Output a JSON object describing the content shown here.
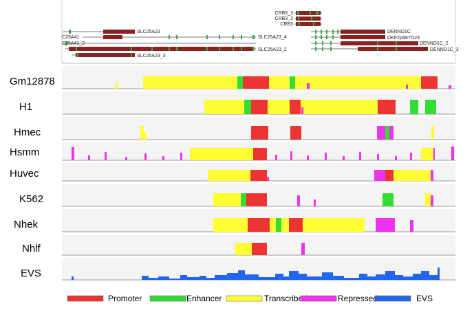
{
  "colors": {
    "promoter": "#ee3333",
    "enhancer": "#33dd33",
    "transcribed": "#ffff33",
    "repressed": "#ee33ee",
    "evs": "#2266ee",
    "gene_body": "#8b2222",
    "gene_exon": "#33aa44",
    "baseline": "#999999",
    "track_bg": "#f4f4f4"
  },
  "genes": {
    "crb3_3": "CRB3_3",
    "crb3_2": "CRB3_2",
    "crb3": "CRB3",
    "slc25a23": "SLC25A23",
    "dennd1c": "DENND1C",
    "c25a41": "C25A41",
    "slc25a23_4": "SLC25A23_4",
    "dkfzp": "DKFZp667O23",
    "c25a41_2": "C25A41_2",
    "dennd1c_2": "DENND1C_2",
    "slc25a23_2": "SLC25A23_2",
    "dennd1c_3": "DENND1C_3",
    "slc25a23_3": "SLC25A23_3"
  },
  "tracks": {
    "gm12878": "Gm12878",
    "h1": "H1",
    "hmec": "Hmec",
    "hsmm": "Hsmm",
    "huvec": "Huvec",
    "k562": "K562",
    "nhek": "Nhek",
    "nhlf": "Nhlf",
    "evs": "EVS"
  },
  "legend": {
    "promoter": "Promoter",
    "enhancer": "Enhancer",
    "transcribed": "Transcribed",
    "repressed": "Repressed",
    "evs": "EVS"
  }
}
